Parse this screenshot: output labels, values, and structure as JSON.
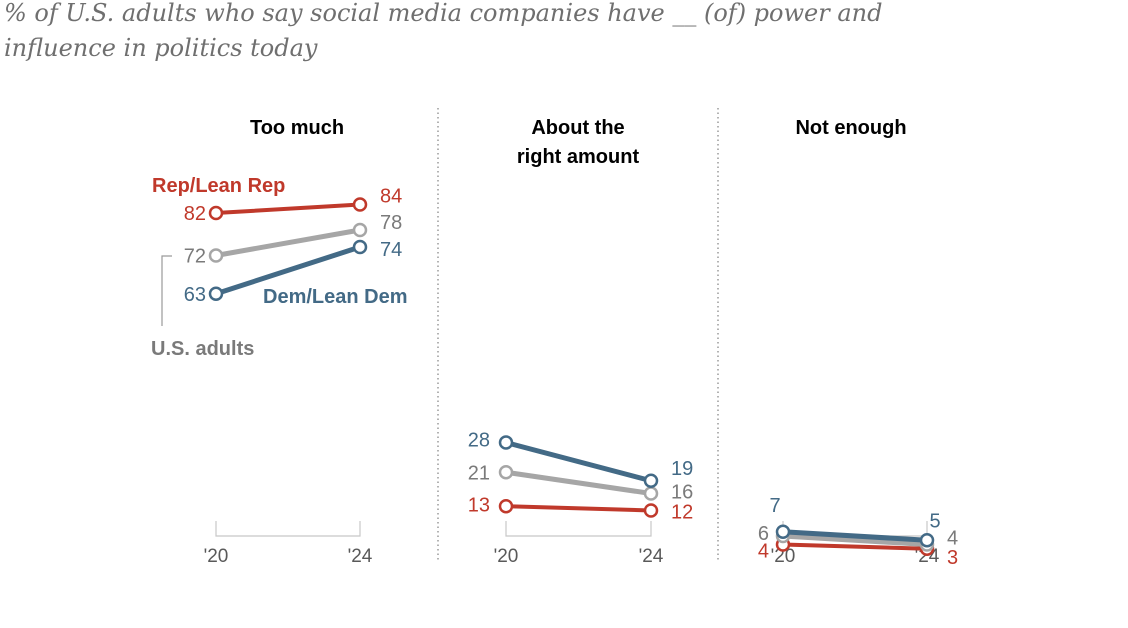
{
  "subtitle": "% of U.S. adults who say social media companies have __ (of) power and influence in politics today",
  "colors": {
    "rep": "#c0392b",
    "dem": "#436a86",
    "total": "#a6a6a6",
    "total_label": "#7a7a7a",
    "divider": "#9a9a9a"
  },
  "legend": {
    "rep": "Rep/Lean Rep",
    "dem": "Dem/Lean Dem",
    "total": "U.S. adults"
  },
  "chart_data": {
    "type": "line",
    "x": [
      "'20",
      "'24"
    ],
    "ylim": [
      0,
      100
    ],
    "panels": [
      {
        "title_lines": [
          "Too much"
        ],
        "series": [
          {
            "name": "Rep/Lean Rep",
            "values": [
              82,
              84
            ]
          },
          {
            "name": "U.S. adults",
            "values": [
              72,
              78
            ]
          },
          {
            "name": "Dem/Lean Dem",
            "values": [
              63,
              74
            ]
          }
        ]
      },
      {
        "title_lines": [
          "About the",
          "right amount"
        ],
        "series": [
          {
            "name": "Rep/Lean Rep",
            "values": [
              13,
              12
            ]
          },
          {
            "name": "U.S. adults",
            "values": [
              21,
              16
            ]
          },
          {
            "name": "Dem/Lean Dem",
            "values": [
              28,
              19
            ]
          }
        ]
      },
      {
        "title_lines": [
          "Not enough"
        ],
        "series": [
          {
            "name": "Rep/Lean Rep",
            "values": [
              4,
              3
            ]
          },
          {
            "name": "U.S. adults",
            "values": [
              6,
              4
            ]
          },
          {
            "name": "Dem/Lean Dem",
            "values": [
              7,
              5
            ]
          }
        ]
      }
    ]
  }
}
